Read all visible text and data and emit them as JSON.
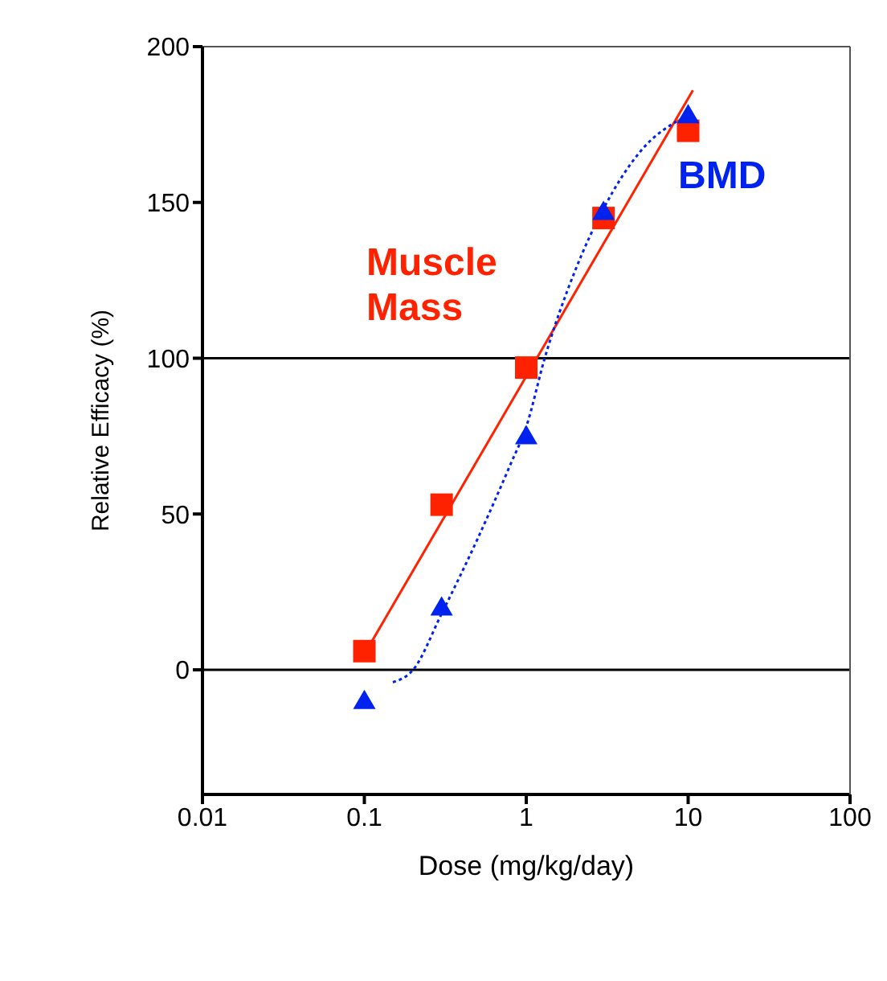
{
  "chart_data": {
    "type": "scatter",
    "xlabel": "Dose (mg/kg/day)",
    "ylabel": "Relative Efficacy (%)",
    "log": "x",
    "xlim": [
      0.01,
      100
    ],
    "xticks": [
      0.01,
      0.1,
      1,
      10,
      100
    ],
    "ylim": [
      -40,
      200
    ],
    "yticks": [
      0,
      50,
      100,
      150,
      200
    ],
    "ref_lines": [
      {
        "axis": "y",
        "value": 0,
        "color": "#000000"
      },
      {
        "axis": "y",
        "value": 100,
        "color": "#000000"
      }
    ],
    "series": [
      {
        "name": "Muscle Mass",
        "color": "#ff2200",
        "marker": "square",
        "x": [
          0.1,
          0.3,
          1,
          3,
          10
        ],
        "values": [
          6,
          53,
          97,
          145,
          173
        ]
      },
      {
        "type": "line",
        "color": "#ff2200",
        "marker": "none",
        "line_style": "solid",
        "x": [
          0.1,
          10.7
        ],
        "values": [
          5,
          186
        ]
      },
      {
        "name": "BMD",
        "color": "#0022ee",
        "marker": "triangle",
        "x": [
          0.1,
          0.3,
          1,
          3,
          10
        ],
        "values": [
          -10,
          20,
          75,
          147,
          178
        ]
      },
      {
        "type": "line",
        "color": "#0022ee",
        "marker": "none",
        "line_style": "dotted",
        "x": [
          0.15,
          0.2,
          0.3,
          0.5,
          0.8,
          1,
          1.3,
          2,
          3,
          5,
          10
        ],
        "values": [
          -4,
          0,
          18,
          42,
          66,
          78,
          100,
          128,
          148,
          166,
          178
        ]
      }
    ]
  }
}
